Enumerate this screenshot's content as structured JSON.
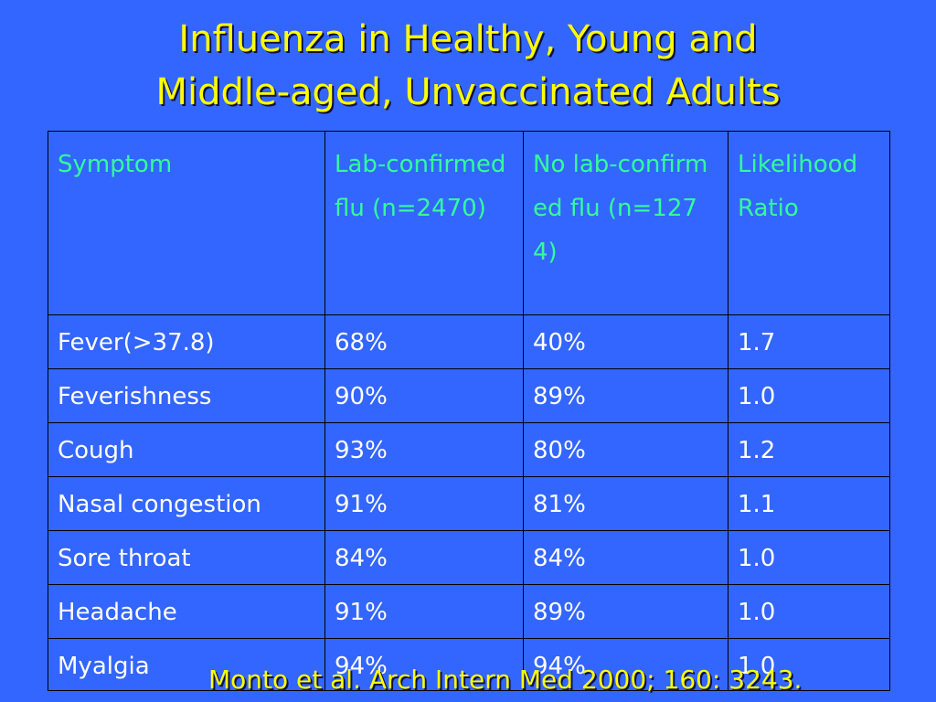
{
  "title": {
    "line1": "Influenza in Healthy, Young and",
    "line2": "Middle-aged, Unvaccinated Adults"
  },
  "table": {
    "headers": [
      "Symptom",
      "Lab-confirmed flu (n=2470)",
      "No lab-confirmed flu (n=1274)",
      "Likelihood Ratio"
    ],
    "rows": [
      [
        "Fever(>37.8)",
        "68%",
        "40%",
        "1.7"
      ],
      [
        "Feverishness",
        "90%",
        "89%",
        "1.0"
      ],
      [
        "Cough",
        "93%",
        "80%",
        "1.2"
      ],
      [
        "Nasal congestion",
        "91%",
        "81%",
        "1.1"
      ],
      [
        "Sore throat",
        "84%",
        "84%",
        "1.0"
      ],
      [
        "Headache",
        "91%",
        "89%",
        "1.0"
      ],
      [
        "Myalgia",
        "94%",
        "94%",
        "1.0"
      ]
    ]
  },
  "citation": "Monto et al. Arch Intern Med 2000; 160: 3243.",
  "colors": {
    "background": "#3366ff",
    "title": "#ffff00",
    "header_text": "#33ff99",
    "cell_text": "#ffffff"
  }
}
